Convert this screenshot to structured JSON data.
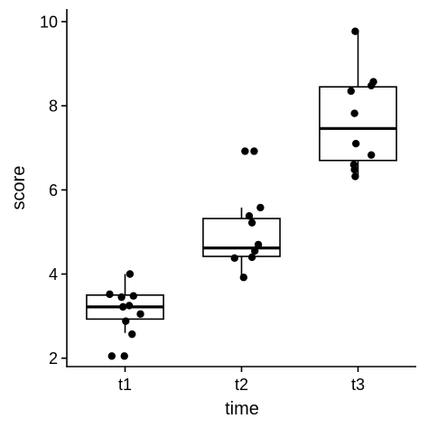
{
  "chart_data": {
    "type": "box",
    "xlabel": "time",
    "ylabel": "score",
    "categories": [
      "t1",
      "t2",
      "t3"
    ],
    "ylim": [
      1.8,
      10.3
    ],
    "yticks": [
      2,
      4,
      6,
      8,
      10
    ],
    "grid": false,
    "legend": "none",
    "colors": {
      "box_fill": "#ffffff",
      "box_stroke": "#000000",
      "point": "#000000"
    },
    "boxes": [
      {
        "category": "t1",
        "q1": 2.93,
        "median": 3.22,
        "q3": 3.5,
        "whisker_low": 2.6,
        "whisker_high": 4.0
      },
      {
        "category": "t2",
        "q1": 4.42,
        "median": 4.62,
        "q3": 5.32,
        "whisker_low": 3.95,
        "whisker_high": 5.58
      },
      {
        "category": "t3",
        "q1": 6.7,
        "median": 7.46,
        "q3": 8.45,
        "whisker_low": 6.35,
        "whisker_high": 9.77
      }
    ],
    "points": [
      {
        "category": "t1",
        "jitter": -0.22,
        "value": 3.52
      },
      {
        "category": "t1",
        "jitter": -0.05,
        "value": 3.45
      },
      {
        "category": "t1",
        "jitter": 0.12,
        "value": 3.48
      },
      {
        "category": "t1",
        "jitter": 0.07,
        "value": 4.0
      },
      {
        "category": "t1",
        "jitter": -0.03,
        "value": 3.22
      },
      {
        "category": "t1",
        "jitter": 0.06,
        "value": 3.25
      },
      {
        "category": "t1",
        "jitter": 0.22,
        "value": 3.05
      },
      {
        "category": "t1",
        "jitter": 0.01,
        "value": 2.88
      },
      {
        "category": "t1",
        "jitter": 0.1,
        "value": 2.57
      },
      {
        "category": "t1",
        "jitter": -0.19,
        "value": 2.05
      },
      {
        "category": "t1",
        "jitter": -0.01,
        "value": 2.05
      },
      {
        "category": "t2",
        "jitter": 0.05,
        "value": 6.92
      },
      {
        "category": "t2",
        "jitter": 0.18,
        "value": 6.92
      },
      {
        "category": "t2",
        "jitter": 0.27,
        "value": 5.58
      },
      {
        "category": "t2",
        "jitter": 0.11,
        "value": 5.38
      },
      {
        "category": "t2",
        "jitter": 0.15,
        "value": 5.22
      },
      {
        "category": "t2",
        "jitter": 0.24,
        "value": 4.7
      },
      {
        "category": "t2",
        "jitter": 0.19,
        "value": 4.55
      },
      {
        "category": "t2",
        "jitter": -0.1,
        "value": 4.38
      },
      {
        "category": "t2",
        "jitter": 0.15,
        "value": 4.4
      },
      {
        "category": "t2",
        "jitter": 0.03,
        "value": 3.92
      },
      {
        "category": "t3",
        "jitter": -0.04,
        "value": 9.77
      },
      {
        "category": "t3",
        "jitter": 0.22,
        "value": 8.57
      },
      {
        "category": "t3",
        "jitter": 0.19,
        "value": 8.48
      },
      {
        "category": "t3",
        "jitter": -0.1,
        "value": 8.35
      },
      {
        "category": "t3",
        "jitter": -0.05,
        "value": 7.82
      },
      {
        "category": "t3",
        "jitter": -0.03,
        "value": 7.1
      },
      {
        "category": "t3",
        "jitter": 0.19,
        "value": 6.83
      },
      {
        "category": "t3",
        "jitter": -0.06,
        "value": 6.6
      },
      {
        "category": "t3",
        "jitter": -0.05,
        "value": 6.48
      },
      {
        "category": "t3",
        "jitter": -0.04,
        "value": 6.32
      }
    ]
  }
}
